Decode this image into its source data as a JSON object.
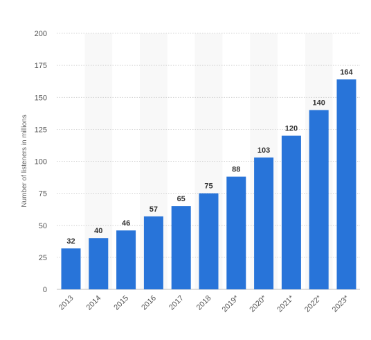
{
  "chart_data": {
    "type": "bar",
    "title": "",
    "xlabel": "",
    "ylabel": "Number of listeners in millions",
    "categories": [
      "2013",
      "2014",
      "2015",
      "2016",
      "2017",
      "2018",
      "2019*",
      "2020*",
      "2021*",
      "2022*",
      "2023*"
    ],
    "values": [
      32,
      40,
      46,
      57,
      65,
      75,
      88,
      103,
      120,
      140,
      164
    ],
    "ylim": [
      0,
      200
    ],
    "yticks": [
      0,
      25,
      50,
      75,
      100,
      125,
      150,
      175,
      200
    ],
    "grid": true,
    "legend": "none",
    "bar_color": "#2874d9",
    "band_color": "#f8f8f8",
    "grid_color": "#c8c8c8"
  }
}
